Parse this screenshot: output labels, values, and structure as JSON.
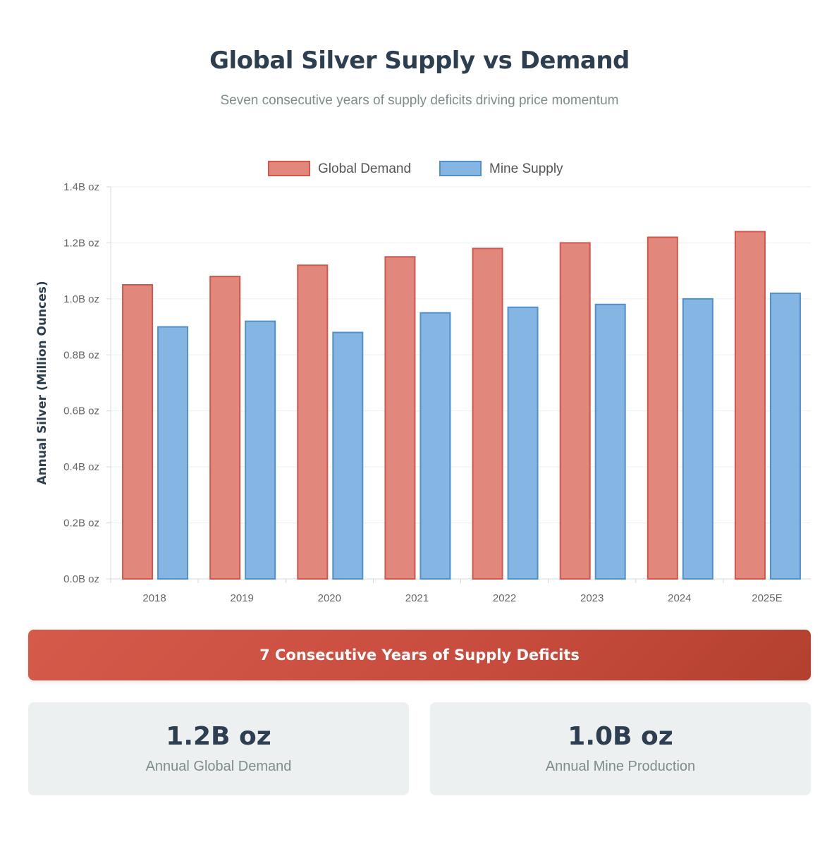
{
  "header": {
    "title": "Global Silver Supply vs Demand",
    "subtitle": "Seven consecutive years of supply deficits driving price momentum"
  },
  "chart_data": {
    "type": "bar",
    "title": "Global Silver Supply vs Demand",
    "xlabel": "",
    "ylabel": "Annual Silver (Million Ounces)",
    "categories": [
      "2018",
      "2019",
      "2020",
      "2021",
      "2022",
      "2023",
      "2024",
      "2025E"
    ],
    "series": [
      {
        "name": "Global Demand",
        "values": [
          1.05,
          1.08,
          1.12,
          1.15,
          1.18,
          1.2,
          1.22,
          1.24
        ],
        "fill": "#e2877b",
        "stroke": "#d4564a"
      },
      {
        "name": "Mine Supply",
        "values": [
          0.9,
          0.92,
          0.88,
          0.95,
          0.97,
          0.98,
          1.0,
          1.02
        ],
        "fill": "#85b5e3",
        "stroke": "#4f90cd"
      }
    ],
    "ylim": [
      0,
      1.4
    ],
    "yticks": [
      0,
      0.2,
      0.4,
      0.6,
      0.8,
      1.0,
      1.2,
      1.4
    ],
    "ytick_labels": [
      "0.0B oz",
      "0.2B oz",
      "0.4B oz",
      "0.6B oz",
      "0.8B oz",
      "1.0B oz",
      "1.2B oz",
      "1.4B oz"
    ],
    "grid": true,
    "legend": "top-center"
  },
  "banner": {
    "text": "7 Consecutive Years of Supply Deficits"
  },
  "stats": [
    {
      "value": "1.2B oz",
      "label": "Annual Global Demand"
    },
    {
      "value": "1.0B oz",
      "label": "Annual Mine Production"
    }
  ]
}
